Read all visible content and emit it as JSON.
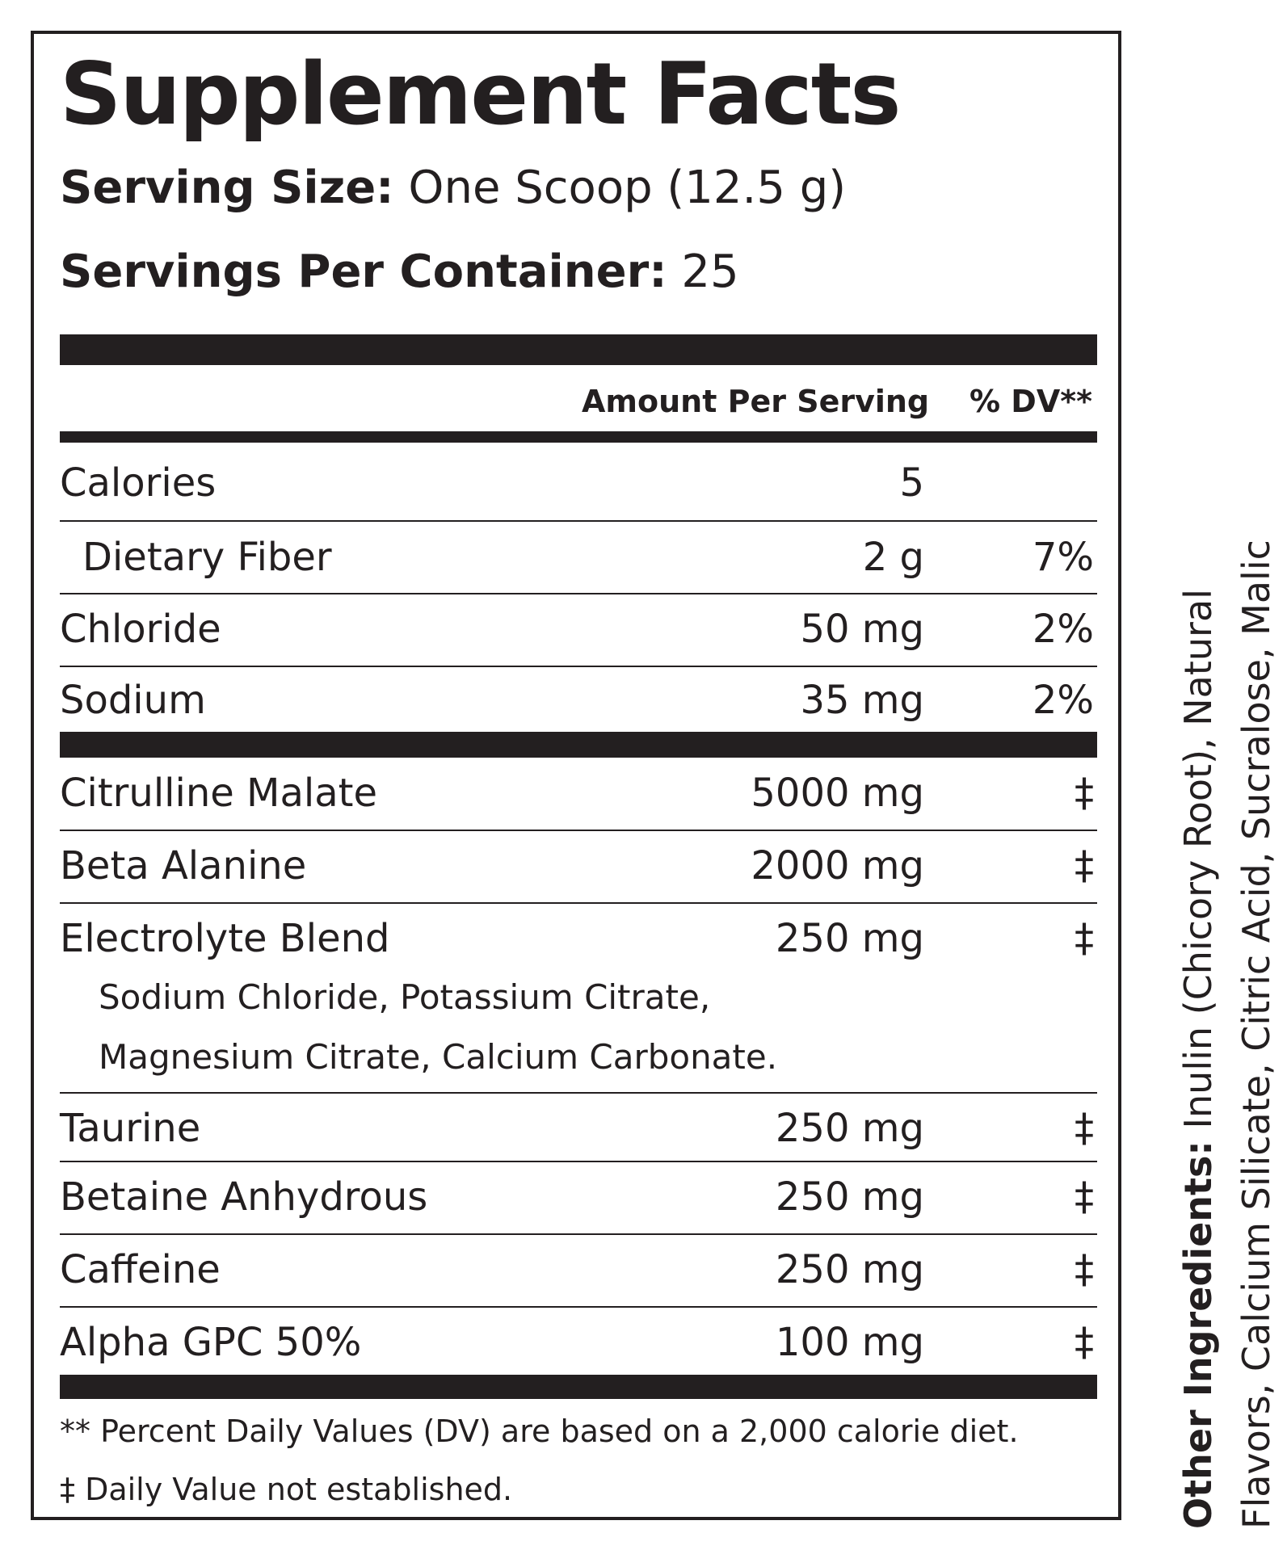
{
  "title": "Supplement Facts",
  "serving_size": {
    "label": "Serving Size:",
    "value": "One Scoop (12.5 g)"
  },
  "servings_per_container": {
    "label": "Servings Per Container:",
    "value": "25"
  },
  "header": {
    "amount": "Amount Per Serving",
    "dv": "% DV**"
  },
  "rows": [
    {
      "name": "Calories",
      "amount": "5",
      "dv": ""
    },
    {
      "name": "Dietary Fiber",
      "amount": "2 g",
      "dv": "7%"
    },
    {
      "name": "Chloride",
      "amount": "50 mg",
      "dv": "2%"
    },
    {
      "name": "Sodium",
      "amount": "35 mg",
      "dv": "2%"
    },
    {
      "name": "Citrulline Malate",
      "amount": "5000 mg",
      "dv": "‡"
    },
    {
      "name": "Beta Alanine",
      "amount": "2000 mg",
      "dv": "‡"
    },
    {
      "name": "Electrolyte Blend",
      "amount": "250 mg",
      "dv": "‡"
    },
    {
      "name": "Taurine",
      "amount": "250 mg",
      "dv": "‡"
    },
    {
      "name": "Betaine Anhydrous",
      "amount": "250 mg",
      "dv": "‡"
    },
    {
      "name": "Caffeine",
      "amount": "250 mg",
      "dv": "‡"
    },
    {
      "name": "Alpha GPC 50%",
      "amount": "100 mg",
      "dv": "‡"
    }
  ],
  "electrolyte_blend_components": [
    "Sodium Chloride, Potassium Citrate,",
    "Magnesium Citrate, Calcium Carbonate."
  ],
  "footnotes": [
    "** Percent Daily Values (DV) are based on a 2,000 calorie diet.",
    "‡ Daily Value not established."
  ],
  "other_ingredients": {
    "label": "Other Ingredients:",
    "value": "Inulin (Chicory Root), Natural Flavors, Calcium Silicate, Citric Acid, Sucralose, Malic Acid."
  }
}
